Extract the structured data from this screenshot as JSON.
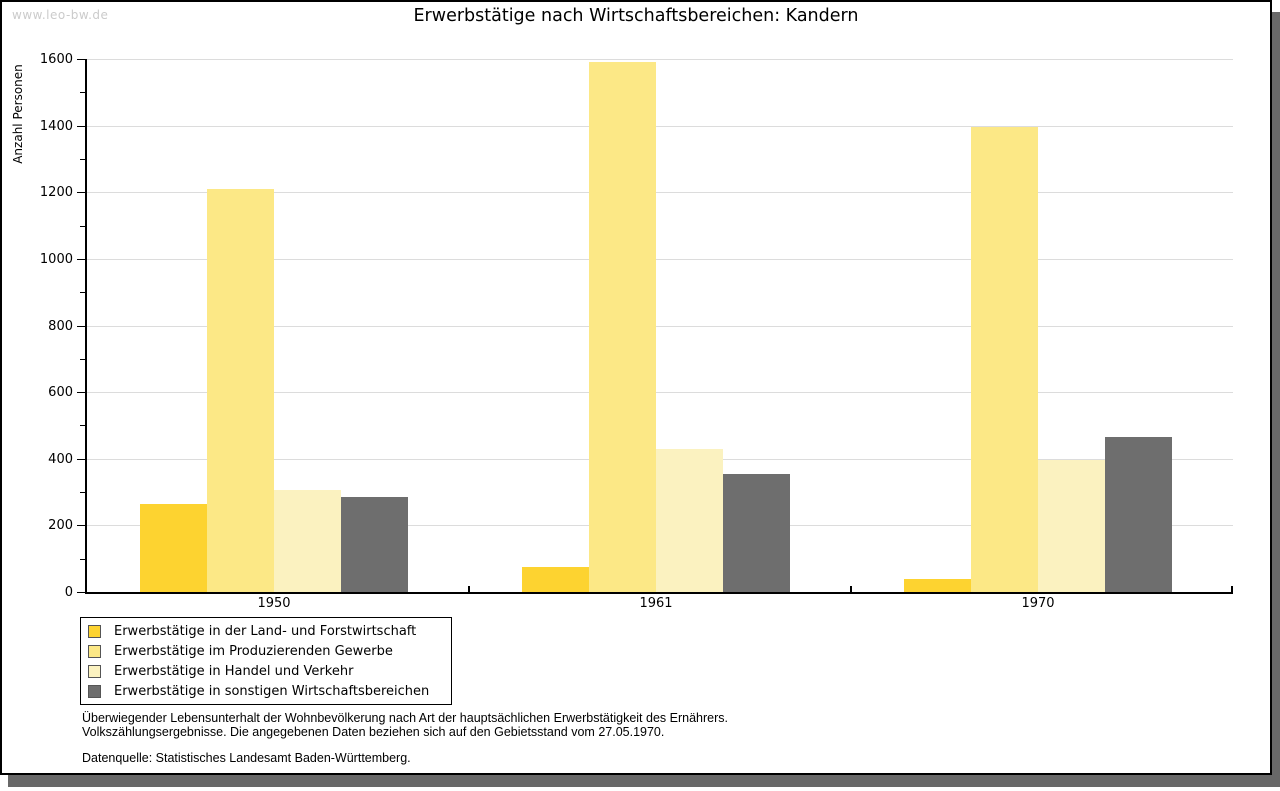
{
  "watermark": "www.leo-bw.de",
  "title": "Erwerbstätige nach Wirtschaftsbereichen: Kandern",
  "chart_data": {
    "type": "bar",
    "title": "Erwerbstätige nach Wirtschaftsbereichen: Kandern",
    "xlabel": "",
    "ylabel": "Anzahl Personen",
    "ylim": [
      0,
      1600
    ],
    "ytick_step": 200,
    "ytick_minor_step": 100,
    "grid": true,
    "legend_position": "bottom-left",
    "categories": [
      "1950",
      "1961",
      "1970"
    ],
    "series": [
      {
        "name": "Erwerbstätige in der Land- und Forstwirtschaft",
        "color": "#fdd330",
        "values": [
          265,
          75,
          38
        ]
      },
      {
        "name": "Erwerbstätige im Produzierenden Gewerbe",
        "color": "#fce886",
        "values": [
          1210,
          1590,
          1395
        ]
      },
      {
        "name": "Erwerbstätige in Handel und Verkehr",
        "color": "#fbf2c0",
        "values": [
          305,
          430,
          395
        ]
      },
      {
        "name": "Erwerbstätige in sonstigen Wirtschaftsbereichen",
        "color": "#6e6e6e",
        "values": [
          285,
          355,
          465
        ]
      }
    ]
  },
  "footnotes": {
    "line1": "Überwiegender Lebensunterhalt der Wohnbevölkerung nach Art der hauptsächlichen Erwerbstätigkeit des Ernährers.",
    "line2": "Volkszählungsergebnisse. Die angegebenen Daten beziehen sich auf den Gebietsstand vom 27.05.1970.",
    "source": "Datenquelle: Statistisches Landesamt Baden-Württemberg."
  },
  "colors": {
    "gridline": "#dcdcdc",
    "axis": "#000000",
    "shadow": "#686868",
    "watermark": "#cbcbcb"
  }
}
